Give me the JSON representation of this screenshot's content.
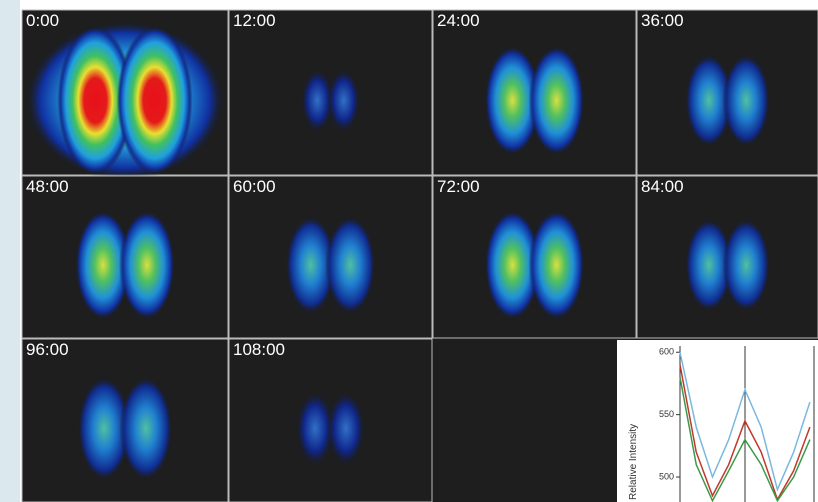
{
  "panels": [
    {
      "label": "0:00"
    },
    {
      "label": "12:00"
    },
    {
      "label": "24:00"
    },
    {
      "label": "36:00"
    },
    {
      "label": "48:00"
    },
    {
      "label": "60:00"
    },
    {
      "label": "72:00"
    },
    {
      "label": "84:00"
    },
    {
      "label": "96:00"
    },
    {
      "label": "108:00"
    }
  ],
  "chart_data": {
    "type": "line",
    "ylabel": "Relative Intensity",
    "x": [
      0,
      1,
      2,
      3,
      4,
      5,
      6,
      7,
      8
    ],
    "series": [
      {
        "color": "#7ab8e0",
        "values": [
          600,
          540,
          500,
          530,
          570,
          540,
          490,
          520,
          560
        ]
      },
      {
        "color": "#c0392b",
        "values": [
          590,
          520,
          485,
          510,
          545,
          520,
          482,
          505,
          540
        ]
      },
      {
        "color": "#3a9a4a",
        "values": [
          580,
          510,
          481,
          505,
          530,
          510,
          481,
          500,
          530
        ]
      }
    ],
    "xlim": [
      0,
      8.5
    ],
    "ylim": [
      480,
      605
    ],
    "yticks": [
      600,
      550,
      500
    ]
  }
}
